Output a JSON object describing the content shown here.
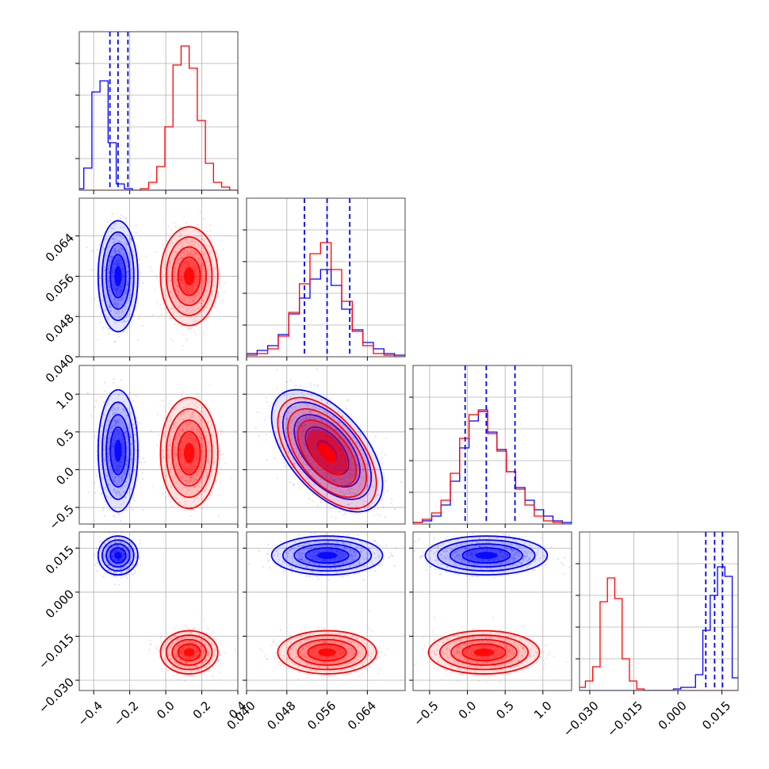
{
  "chart_data": {
    "type": "corner",
    "title": "",
    "parameters": [
      "",
      "",
      "",
      ""
    ],
    "ranges": [
      [
        -0.48,
        0.4
      ],
      [
        0.04,
        0.0715
      ],
      [
        -0.72,
        1.38
      ],
      [
        -0.0335,
        0.0205
      ]
    ],
    "ticks": [
      {
        "values": [
          -0.4,
          -0.2,
          0.0,
          0.2,
          0.4
        ],
        "labels": [
          "−0.4",
          "−0.2",
          "0.0",
          "0.2",
          "0.4"
        ]
      },
      {
        "values": [
          0.04,
          0.048,
          0.056,
          0.064
        ],
        "labels": [
          "0.040",
          "0.048",
          "0.056",
          "0.064"
        ]
      },
      {
        "values": [
          -0.5,
          0.0,
          0.5,
          1.0
        ],
        "labels": [
          "−0.5",
          "0.0",
          "0.5",
          "1.0"
        ]
      },
      {
        "values": [
          -0.03,
          -0.015,
          0.0,
          0.015
        ],
        "labels": [
          "−0.030",
          "−0.015",
          "0.000",
          "0.015"
        ]
      }
    ],
    "grid": true,
    "series": [
      {
        "color": "#0000ff",
        "means": [
          -0.265,
          0.056,
          0.25,
          0.0125
        ],
        "sigmas": [
          0.045,
          0.0045,
          0.33,
          0.0027
        ],
        "correlations": {
          "1-2": -0.55,
          "0-2": 0.0,
          "0-1": 0.0,
          "0-3": 0.0,
          "1-3": 0.0,
          "2-3": 0.0
        },
        "quantiles": [
          [
            -0.31,
            -0.265,
            -0.21
          ],
          [
            0.0515,
            0.056,
            0.0605
          ],
          [
            -0.03,
            0.25,
            0.63
          ],
          [
            0.0095,
            0.0125,
            0.0152
          ]
        ]
      },
      {
        "color": "#ff0000",
        "means": [
          0.13,
          0.056,
          0.22,
          -0.0205
        ],
        "sigmas": [
          0.065,
          0.004,
          0.3,
          0.003
        ],
        "correlations": {
          "1-2": -0.55,
          "0-2": 0.0,
          "0-1": 0.0,
          "0-3": 0.0,
          "1-3": 0.0,
          "2-3": 0.0
        },
        "quantiles": []
      }
    ],
    "histograms": [
      {
        "bins": [
          -0.5,
          0.4
        ],
        "series": [
          {
            "color": "#0000ff",
            "counts": [
              0.01,
              0.14,
              0.62,
              0.69,
              0.3,
              0.04,
              0.01,
              0,
              0,
              0,
              0,
              0,
              0,
              0,
              0,
              0,
              0,
              0,
              0,
              0
            ]
          },
          {
            "color": "#ff0000",
            "counts": [
              0,
              0,
              0,
              0,
              0,
              0,
              0,
              0,
              0.01,
              0.05,
              0.15,
              0.4,
              0.79,
              0.91,
              0.77,
              0.44,
              0.17,
              0.05,
              0.02,
              0
            ]
          }
        ]
      },
      {
        "bins": [
          0.04,
          0.0715
        ],
        "series": [
          {
            "color": "#0000ff",
            "counts": [
              0.02,
              0.04,
              0.07,
              0.14,
              0.27,
              0.37,
              0.49,
              0.55,
              0.45,
              0.3,
              0.17,
              0.09,
              0.05,
              0.02,
              0.01
            ]
          },
          {
            "color": "#ff0000",
            "counts": [
              0.01,
              0.02,
              0.05,
              0.13,
              0.28,
              0.46,
              0.65,
              0.72,
              0.55,
              0.35,
              0.16,
              0.07,
              0.02,
              0.01,
              0
            ]
          }
        ]
      },
      {
        "bins": [
          -0.72,
          1.38
        ],
        "series": [
          {
            "color": "#0000ff",
            "counts": [
              0.01,
              0.02,
              0.05,
              0.12,
              0.27,
              0.48,
              0.65,
              0.71,
              0.58,
              0.47,
              0.33,
              0.23,
              0.15,
              0.09,
              0.05,
              0.02,
              0.01
            ]
          },
          {
            "color": "#ff0000",
            "counts": [
              0.01,
              0.03,
              0.07,
              0.15,
              0.32,
              0.54,
              0.69,
              0.72,
              0.57,
              0.46,
              0.33,
              0.22,
              0.12,
              0.05,
              0.02,
              0.01,
              0
            ]
          }
        ]
      },
      {
        "bins": [
          -0.034,
          0.021
        ],
        "series": [
          {
            "color": "#ff0000",
            "counts": [
              0.02,
              0.06,
              0.15,
              0.56,
              0.71,
              0.58,
              0.2,
              0.06,
              0.01,
              0,
              0,
              0,
              0,
              0,
              0,
              0,
              0,
              0,
              0,
              0,
              0,
              0
            ]
          },
          {
            "color": "#0000ff",
            "counts": [
              0,
              0,
              0,
              0,
              0,
              0,
              0,
              0,
              0,
              0,
              0,
              0,
              0,
              0.01,
              0.02,
              0.02,
              0.1,
              0.38,
              0.6,
              0.78,
              0.72,
              0.08
            ]
          }
        ]
      }
    ]
  }
}
